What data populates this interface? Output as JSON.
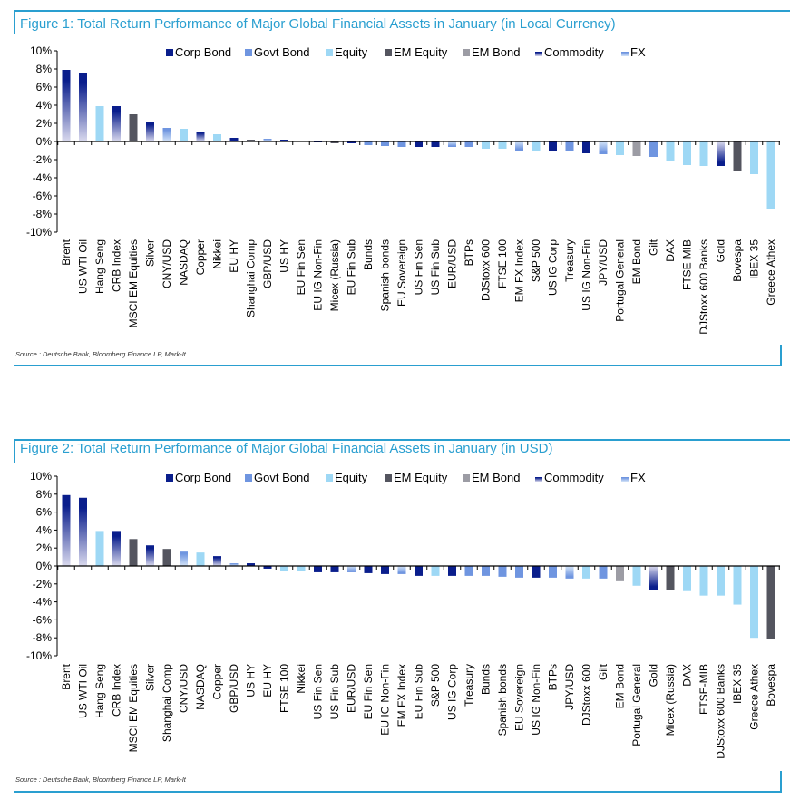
{
  "colors": {
    "Corp Bond": "#0A1E8C",
    "Govt Bond": "#6F95E0",
    "Equity": "#9ED8F5",
    "EM Equity": "#54555F",
    "EM Bond": "#9C9CA4",
    "Commodity": [
      "#0A1E8C",
      "#DADAEE"
    ],
    "FX": [
      "#6F95E0",
      "#D4E4F8"
    ]
  },
  "chart_data": [
    {
      "type": "bar",
      "title": "Figure 1: Total Return Performance of Major Global Financial Assets in January (in Local Currency)",
      "source": "Source : Deutsche Bank, Bloomberg Finance LP, Mark-It",
      "ylim": [
        -10,
        10
      ],
      "yticks": [
        "10%",
        "8%",
        "6%",
        "4%",
        "2%",
        "0%",
        "-2%",
        "-4%",
        "-6%",
        "-8%",
        "-10%"
      ],
      "legend": [
        "Corp Bond",
        "Govt Bond",
        "Equity",
        "EM Equity",
        "EM Bond",
        "Commodity",
        "FX"
      ],
      "legend_position": "top",
      "grid": false,
      "categories": [
        "Brent",
        "US WTI Oil",
        "Hang Seng",
        "CRB Index",
        "MSCI EM Equities",
        "Silver",
        "CNY/USD",
        "NASDAQ",
        "Copper",
        "Nikkei",
        "EU HY",
        "Shanghai Comp",
        "GBP/USD",
        "US HY",
        "EU Fin Sen",
        "EU IG Non-Fin",
        "Micex (Russia)",
        "EU Fin Sub",
        "Bunds",
        "Spanish bonds",
        "EU Sovereign",
        "US Fin Sen",
        "US Fin Sub",
        "EUR/USD",
        "BTPs",
        "DJStoxx 600",
        "FTSE 100",
        "EM FX Index",
        "S&P 500",
        "US IG Corp",
        "Treasury",
        "US IG Non-Fin",
        "JPY/USD",
        "Portugal General",
        "EM Bond",
        "Gilt",
        "DAX",
        "FTSE-MIB",
        "DJStoxx 600 Banks",
        "Gold",
        "Bovespa",
        "IBEX 35",
        "Greece Athex"
      ],
      "values": [
        7.9,
        7.6,
        3.9,
        3.9,
        3.0,
        2.2,
        1.5,
        1.4,
        1.1,
        0.8,
        0.4,
        0.2,
        0.3,
        0.2,
        0.05,
        -0.1,
        -0.2,
        -0.2,
        -0.4,
        -0.5,
        -0.6,
        -0.6,
        -0.6,
        -0.6,
        -0.6,
        -0.8,
        -0.8,
        -1.0,
        -1.0,
        -1.1,
        -1.1,
        -1.3,
        -1.4,
        -1.5,
        -1.6,
        -1.7,
        -2.1,
        -2.6,
        -2.7,
        -2.7,
        -3.3,
        -3.6,
        -7.4
      ],
      "classes": [
        "Commodity",
        "Commodity",
        "Equity",
        "Commodity",
        "EM Equity",
        "Commodity",
        "FX",
        "Equity",
        "Commodity",
        "Equity",
        "Corp Bond",
        "EM Equity",
        "FX",
        "Corp Bond",
        "Corp Bond",
        "Corp Bond",
        "EM Equity",
        "Corp Bond",
        "Govt Bond",
        "Govt Bond",
        "Govt Bond",
        "Corp Bond",
        "Corp Bond",
        "FX",
        "Govt Bond",
        "Equity",
        "Equity",
        "FX",
        "Equity",
        "Corp Bond",
        "Govt Bond",
        "Corp Bond",
        "FX",
        "Equity",
        "EM Bond",
        "Govt Bond",
        "Equity",
        "Equity",
        "Equity",
        "Commodity",
        "EM Equity",
        "Equity",
        "Equity"
      ]
    },
    {
      "type": "bar",
      "title": "Figure 2: Total Return Performance of Major Global Financial Assets in January (in USD)",
      "source": "Source : Deutsche Bank, Bloomberg Finance LP, Mark-It",
      "ylim": [
        -10,
        10
      ],
      "yticks": [
        "10%",
        "8%",
        "6%",
        "4%",
        "2%",
        "0%",
        "-2%",
        "-4%",
        "-6%",
        "-8%",
        "-10%"
      ],
      "legend": [
        "Corp Bond",
        "Govt Bond",
        "Equity",
        "EM Equity",
        "EM Bond",
        "Commodity",
        "FX"
      ],
      "legend_position": "top",
      "grid": false,
      "categories": [
        "Brent",
        "US WTI Oil",
        "Hang Seng",
        "CRB Index",
        "MSCI EM Equities",
        "Silver",
        "Shanghai Comp",
        "CNY/USD",
        "NASDAQ",
        "Copper",
        "GBP/USD",
        "US HY",
        "EU HY",
        "FTSE 100",
        "Nikkei",
        "US Fin Sen",
        "US Fin Sub",
        "EUR/USD",
        "EU Fin Sen",
        "EU IG Non-Fin",
        "EM FX Index",
        "EU Fin Sub",
        "S&P 500",
        "US IG Corp",
        "Treasury",
        "Bunds",
        "Spanish bonds",
        "EU Sovereign",
        "US IG Non-Fin",
        "BTPs",
        "JPY/USD",
        "DJStoxx 600",
        "Gilt",
        "EM Bond",
        "Portugal General",
        "Gold",
        "Micex (Russia)",
        "DAX",
        "FTSE-MIB",
        "DJStoxx 600 Banks",
        "IBEX 35",
        "Greece Athex",
        "Bovespa"
      ],
      "values": [
        7.9,
        7.6,
        3.9,
        3.9,
        3.0,
        2.3,
        1.9,
        1.6,
        1.5,
        1.1,
        0.3,
        0.3,
        -0.3,
        -0.6,
        -0.6,
        -0.7,
        -0.7,
        -0.7,
        -0.8,
        -0.9,
        -0.9,
        -1.1,
        -1.1,
        -1.1,
        -1.1,
        -1.1,
        -1.2,
        -1.3,
        -1.3,
        -1.3,
        -1.4,
        -1.4,
        -1.4,
        -1.7,
        -2.2,
        -2.7,
        -2.7,
        -2.8,
        -3.3,
        -3.3,
        -4.3,
        -8.0,
        -8.1
      ],
      "classes": [
        "Commodity",
        "Commodity",
        "Equity",
        "Commodity",
        "EM Equity",
        "Commodity",
        "EM Equity",
        "FX",
        "Equity",
        "Commodity",
        "FX",
        "Corp Bond",
        "Corp Bond",
        "Equity",
        "Equity",
        "Corp Bond",
        "Corp Bond",
        "FX",
        "Corp Bond",
        "Corp Bond",
        "FX",
        "Corp Bond",
        "Equity",
        "Corp Bond",
        "Govt Bond",
        "Govt Bond",
        "Govt Bond",
        "Govt Bond",
        "Corp Bond",
        "Govt Bond",
        "FX",
        "Equity",
        "Govt Bond",
        "EM Bond",
        "Equity",
        "Commodity",
        "EM Equity",
        "Equity",
        "Equity",
        "Equity",
        "Equity",
        "Equity",
        "EM Equity"
      ]
    }
  ]
}
